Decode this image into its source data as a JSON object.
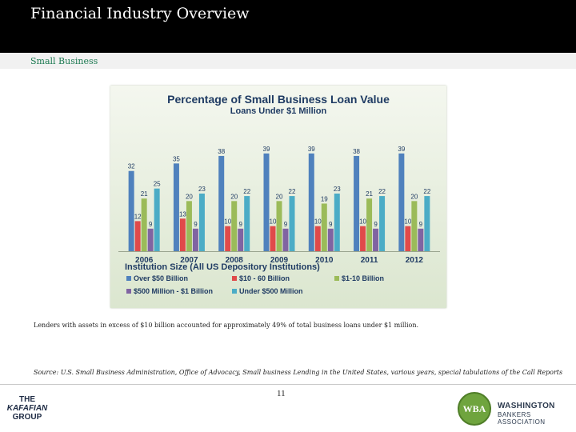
{
  "header": {
    "title": "Financial Industry Overview",
    "subtitle": "Small Business"
  },
  "chart_data": {
    "type": "bar",
    "title": "Percentage of Small Business Loan Value",
    "subtitle": "Loans Under $1 Million",
    "categories": [
      "2006",
      "2007",
      "2008",
      "2009",
      "2010",
      "2011",
      "2012"
    ],
    "series": [
      {
        "name": "Over $50 Billion",
        "color": "#4f81bd",
        "values": [
          32,
          35,
          38,
          39,
          39,
          38,
          39
        ]
      },
      {
        "name": "$10 - 60 Billion",
        "color": "#e04a4a",
        "values": [
          12,
          13,
          10,
          10,
          10,
          10,
          10
        ]
      },
      {
        "name": "$1-10 Billion",
        "color": "#9bbb59",
        "values": [
          21,
          20,
          20,
          20,
          19,
          21,
          20
        ]
      },
      {
        "name": "$500 Million - $1 Billion",
        "color": "#8064a2",
        "values": [
          9,
          9,
          9,
          9,
          9,
          9,
          9
        ]
      },
      {
        "name": "Under $500 Million",
        "color": "#4bacc6",
        "values": [
          25,
          23,
          22,
          22,
          23,
          22,
          22
        ]
      }
    ],
    "legend_title": "Institution Size (All US Depository Institutions)",
    "ylim": [
      0,
      45
    ],
    "grid": false,
    "legend_position": "bottom"
  },
  "note": "Lenders with assets in excess of $10 billion accounted for approximately 49% of total business loans under $1 million.",
  "source": "Source: U.S. Small Business Administration, Office of Advocacy, Small business Lending in the United States, various years, special tabulations of the Call Reports",
  "footer": {
    "page_number": "11",
    "left_logo": {
      "line1": "THE",
      "line2": "KAFAFIAN",
      "line3": "GROUP"
    },
    "right_logo": {
      "badge": "WBA",
      "line1": "WASHINGTON",
      "line2": "BANKERS ASSOCIATION"
    }
  }
}
